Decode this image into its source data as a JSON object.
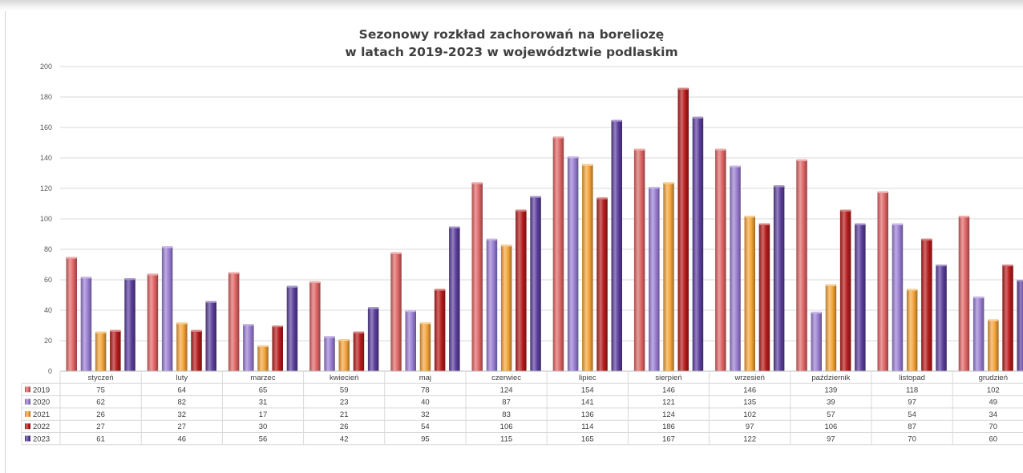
{
  "chart_data": {
    "type": "bar",
    "title": [
      "Sezonowy rozkład zachorowań na boreliozę",
      "w latach 2019-2023 w województwie podlaskim"
    ],
    "categories": [
      "styczeń",
      "luty",
      "marzec",
      "kwiecień",
      "maj",
      "czerwiec",
      "lipiec",
      "sierpień",
      "wrzesień",
      "październik",
      "listopad",
      "grudzień"
    ],
    "series": [
      {
        "name": "2019",
        "color": "#e06666",
        "values": [
          75,
          64,
          65,
          59,
          78,
          124,
          154,
          146,
          146,
          139,
          118,
          102
        ]
      },
      {
        "name": "2020",
        "color": "#9b7fd4",
        "values": [
          62,
          82,
          31,
          23,
          40,
          87,
          141,
          121,
          135,
          39,
          97,
          49
        ]
      },
      {
        "name": "2021",
        "color": "#f5a53a",
        "values": [
          26,
          32,
          17,
          21,
          32,
          83,
          136,
          124,
          102,
          57,
          54,
          34
        ]
      },
      {
        "name": "2022",
        "color": "#b71c1c",
        "values": [
          27,
          27,
          30,
          26,
          54,
          106,
          114,
          186,
          97,
          106,
          87,
          70
        ]
      },
      {
        "name": "2023",
        "color": "#5b3e9c",
        "values": [
          61,
          46,
          56,
          42,
          95,
          115,
          165,
          167,
          122,
          97,
          70,
          60
        ]
      }
    ],
    "ylim": [
      0,
      200
    ],
    "yticks": [
      "0",
      "20",
      "40",
      "60",
      "80",
      "100",
      "120",
      "140",
      "160",
      "180",
      "200"
    ],
    "grid": true,
    "legend": "data-table-below"
  }
}
